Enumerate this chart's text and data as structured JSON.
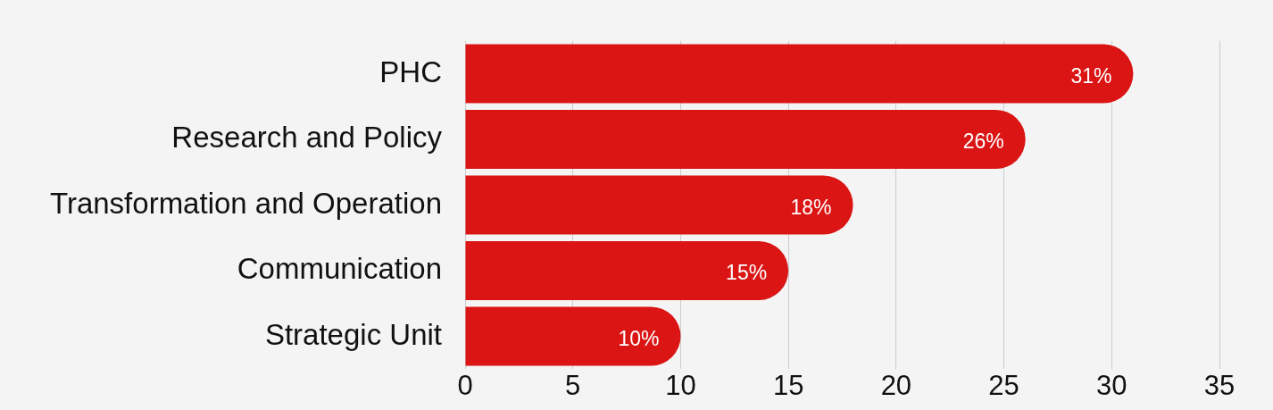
{
  "chart_data": {
    "type": "bar",
    "orientation": "horizontal",
    "categories": [
      "PHC",
      "Research and Policy",
      "Transformation and Operation",
      "Communication",
      "Strategic Unit"
    ],
    "values": [
      31,
      26,
      18,
      15,
      10
    ],
    "value_labels": [
      "31%",
      "26%",
      "18%",
      "15%",
      "10%"
    ],
    "color": "#db1414",
    "xlim": [
      0,
      35
    ],
    "xticks": [
      0,
      5,
      10,
      15,
      20,
      25,
      30,
      35
    ],
    "grid": "x",
    "legend": false
  }
}
